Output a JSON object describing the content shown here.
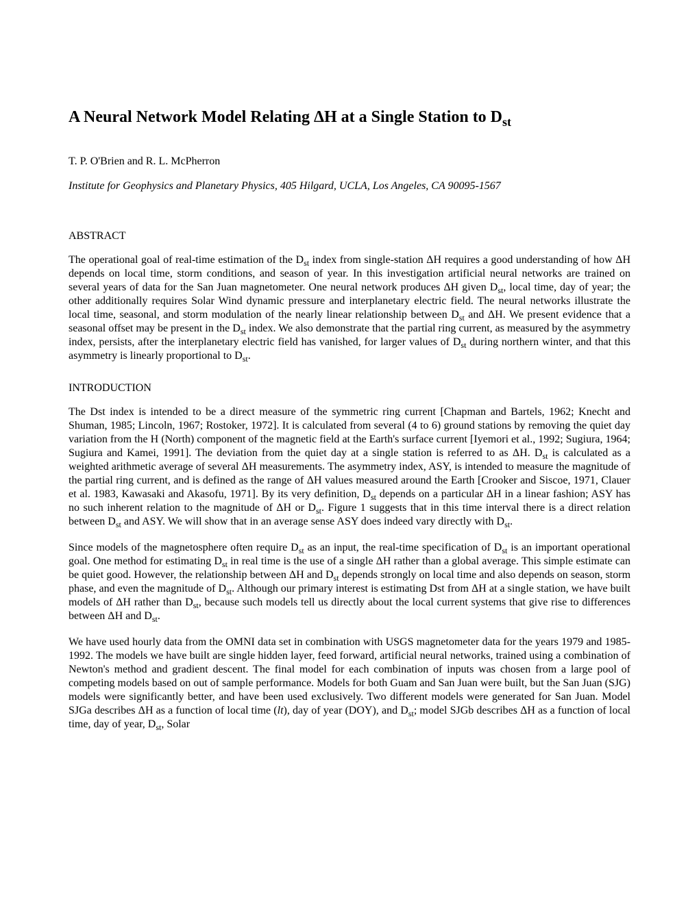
{
  "title_html": "A Neural Network Model Relating ΔH at a Single Station to D<sub>st</sub>",
  "authors": "T. P. O'Brien and R. L. McPherron",
  "affiliation": "Institute for Geophysics and Planetary Physics, 405 Hilgard, UCLA, Los Angeles, CA 90095-1567",
  "sections": {
    "abstract": {
      "heading": "ABSTRACT",
      "p1_html": "The operational goal of real-time estimation of the D<sub>st</sub> index from single-station ΔH requires a good understanding of how ΔH depends on local time, storm conditions, and season of year. In this investigation artificial neural networks are trained on several years of data for the San Juan magnetometer. One neural network produces ΔH given D<sub>st</sub>, local time, day of year; the other additionally requires Solar Wind dynamic pressure and interplanetary electric field. The neural networks illustrate the local time, seasonal, and storm modulation of the nearly linear relationship between D<sub>st</sub> and ΔH. We present evidence that a seasonal offset may be present in the D<sub>st</sub> index. We also demonstrate that the partial ring current, as measured by the asymmetry index, persists, after the interplanetary electric field has vanished, for larger values of D<sub>st</sub> during northern winter, and that this asymmetry is linearly proportional to D<sub>st</sub>."
    },
    "introduction": {
      "heading": "INTRODUCTION",
      "p1_html": "The Dst index is intended to be a direct measure of the symmetric ring current [Chapman and Bartels, 1962; Knecht and Shuman, 1985; Lincoln, 1967; Rostoker, 1972]. It is calculated from several (4 to 6) ground stations by removing the quiet day variation from the H (North) component of the magnetic field at the Earth's surface current [Iyemori et al., 1992; Sugiura, 1964; Sugiura and Kamei, 1991]. The deviation from the quiet day at a single station is referred to as ΔH. D<sub>st</sub> is calculated as a weighted arithmetic average of several ΔH measurements. The asymmetry index, ASY, is intended to measure the magnitude of the partial ring current, and is defined as the range of ΔH values measured around the Earth [Crooker and Siscoe, 1971, Clauer et al. 1983, Kawasaki and Akasofu, 1971]. By its very definition, D<sub>st</sub> depends on a particular ΔH in a linear fashion; ASY has no such inherent relation to the magnitude of ΔH or D<sub>st</sub>. Figure 1 suggests that in this time interval there is a direct relation between D<sub>st</sub> and ASY. We will show that in an average sense ASY does indeed vary directly with D<sub>st</sub>.",
      "p2_html": "Since models of the magnetosphere often require D<sub>st</sub> as an input, the real-time specification of D<sub>st</sub> is an important operational goal. One method for estimating D<sub>st</sub> in real time is the use of a single ΔH rather than a global average. This simple estimate can be quiet good. However, the relationship between ΔH and D<sub>st</sub> depends strongly on local time and also depends on season, storm phase, and even the magnitude of D<sub>st</sub>. Although our primary interest is estimating Dst from ΔH at a single station, we have built models of ΔH rather than D<sub>st</sub>, because such models tell us directly about the local current systems that give rise to differences between ΔH and D<sub>st</sub>.",
      "p3_html": "We have used hourly data from the OMNI data set in combination with USGS magnetometer data for the years 1979 and 1985-1992. The models we have built are single hidden layer, feed forward, artificial neural networks, trained using a combination of Newton's method and gradient descent. The final model for each combination of inputs was chosen from a large pool of competing models based on out of sample performance. Models for both Guam and San Juan were built, but the San Juan (SJG) models were significantly better, and have been used exclusively. Two different models were generated for San Juan. Model SJGa describes ΔH as a function of local time (<span class=\"italic\">lt</span>), day of year (DOY), and D<sub>st</sub>; model SJGb describes ΔH as a function of local time, day of year, D<sub>st</sub>, Solar"
    }
  }
}
